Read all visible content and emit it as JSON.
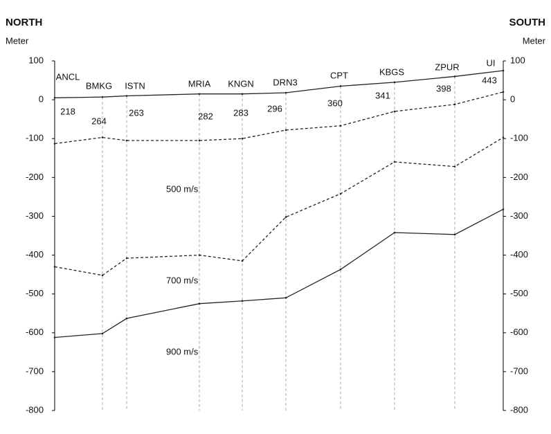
{
  "chart_data": {
    "type": "line",
    "left_title": "NORTH",
    "right_title": "SOUTH",
    "y_label": "Meter",
    "y2_label": "Meter",
    "categories": [
      "ANCL",
      "BMKG",
      "ISTN",
      "MRIA",
      "KNGN",
      "DRN3",
      "CPT",
      "KBGS",
      "ZPUR",
      "UI"
    ],
    "station_values": [
      218,
      264,
      263,
      282,
      283,
      296,
      360,
      341,
      398,
      443
    ],
    "series": [
      {
        "color": "#222222",
        "dash": "solid",
        "values": [
          5,
          7,
          10,
          15,
          15,
          18,
          35,
          45,
          60,
          75
        ]
      },
      {
        "color": "#222222",
        "dash": "dashed",
        "values": [
          -113,
          -97,
          -105,
          -105,
          -100,
          -78,
          -67,
          -30,
          -12,
          20
        ]
      },
      {
        "color": "#222222",
        "dash": "dashed",
        "values": [
          -430,
          -452,
          -408,
          -400,
          -415,
          -302,
          -242,
          -160,
          -172,
          -97
        ]
      },
      {
        "color": "#222222",
        "dash": "solid",
        "values": [
          -612,
          -602,
          -563,
          -525,
          -518,
          -510,
          -437,
          -342,
          -347,
          -282
        ]
      }
    ],
    "annotations": [
      "500 m/s",
      "700 m/s",
      "900 m/s"
    ],
    "ylim": [
      -800,
      100
    ],
    "yticks": [
      100,
      0,
      -100,
      -200,
      -300,
      -400,
      -500,
      -600,
      -700,
      -800
    ],
    "y2lim": [
      -800,
      100
    ],
    "y2ticks": [
      100,
      0,
      -100,
      -200,
      -300,
      -400,
      -500,
      -600,
      -700,
      -800
    ]
  }
}
